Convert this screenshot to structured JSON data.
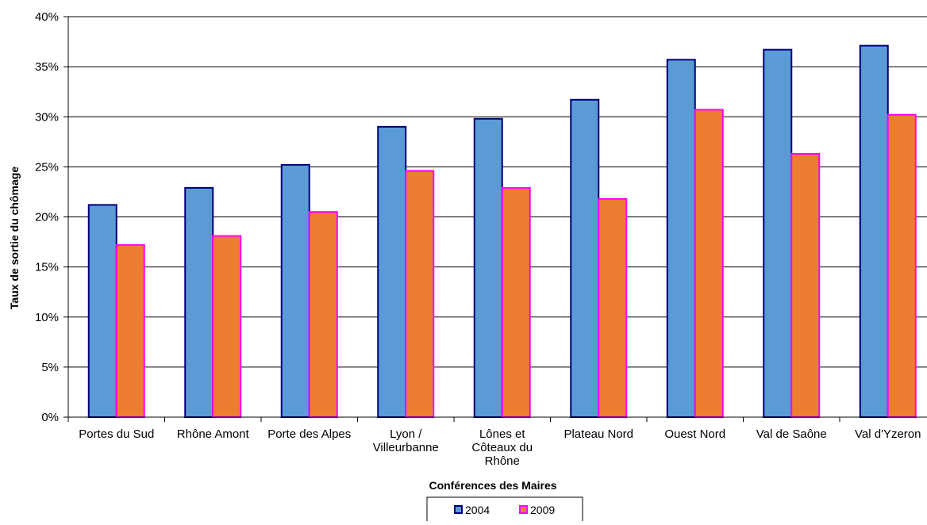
{
  "chart_data": {
    "type": "bar",
    "categories": [
      "Portes du Sud",
      "Rhône Amont",
      "Porte des Alpes",
      "Lyon / Villeurbanne",
      "Lônes et Côteaux du Rhône",
      "Plateau Nord",
      "Ouest Nord",
      "Val de Saône",
      "Val d'Yzeron"
    ],
    "category_label_lines": [
      [
        "Portes du Sud"
      ],
      [
        "Rhône Amont"
      ],
      [
        "Porte des Alpes"
      ],
      [
        "Lyon /",
        "Villeurbanne"
      ],
      [
        "Lônes et",
        "Côteaux du",
        "Rhône"
      ],
      [
        "Plateau Nord"
      ],
      [
        "Ouest Nord"
      ],
      [
        "Val de Saône"
      ],
      [
        "Val d'Yzeron"
      ]
    ],
    "series": [
      {
        "name": "2004",
        "values": [
          21.2,
          22.9,
          25.2,
          29.0,
          29.8,
          31.7,
          35.7,
          36.7,
          37.1
        ],
        "fill": "#5b9bd5",
        "stroke": "#00007a"
      },
      {
        "name": "2009",
        "values": [
          17.2,
          18.1,
          20.5,
          24.6,
          22.9,
          21.8,
          30.7,
          26.3,
          30.2
        ],
        "fill": "#ed7d31",
        "stroke": "#ff00ff"
      }
    ],
    "ylim": [
      0,
      40
    ],
    "yticks": [
      0,
      5,
      10,
      15,
      20,
      25,
      30,
      35,
      40
    ],
    "ytick_labels": [
      "0%",
      "5%",
      "10%",
      "15%",
      "20%",
      "25%",
      "30%",
      "35%",
      "40%"
    ],
    "xlabel": "Conférences des Maires",
    "ylabel": "Taux de sortie du chômage",
    "grid": true,
    "legend_position": "bottom"
  }
}
